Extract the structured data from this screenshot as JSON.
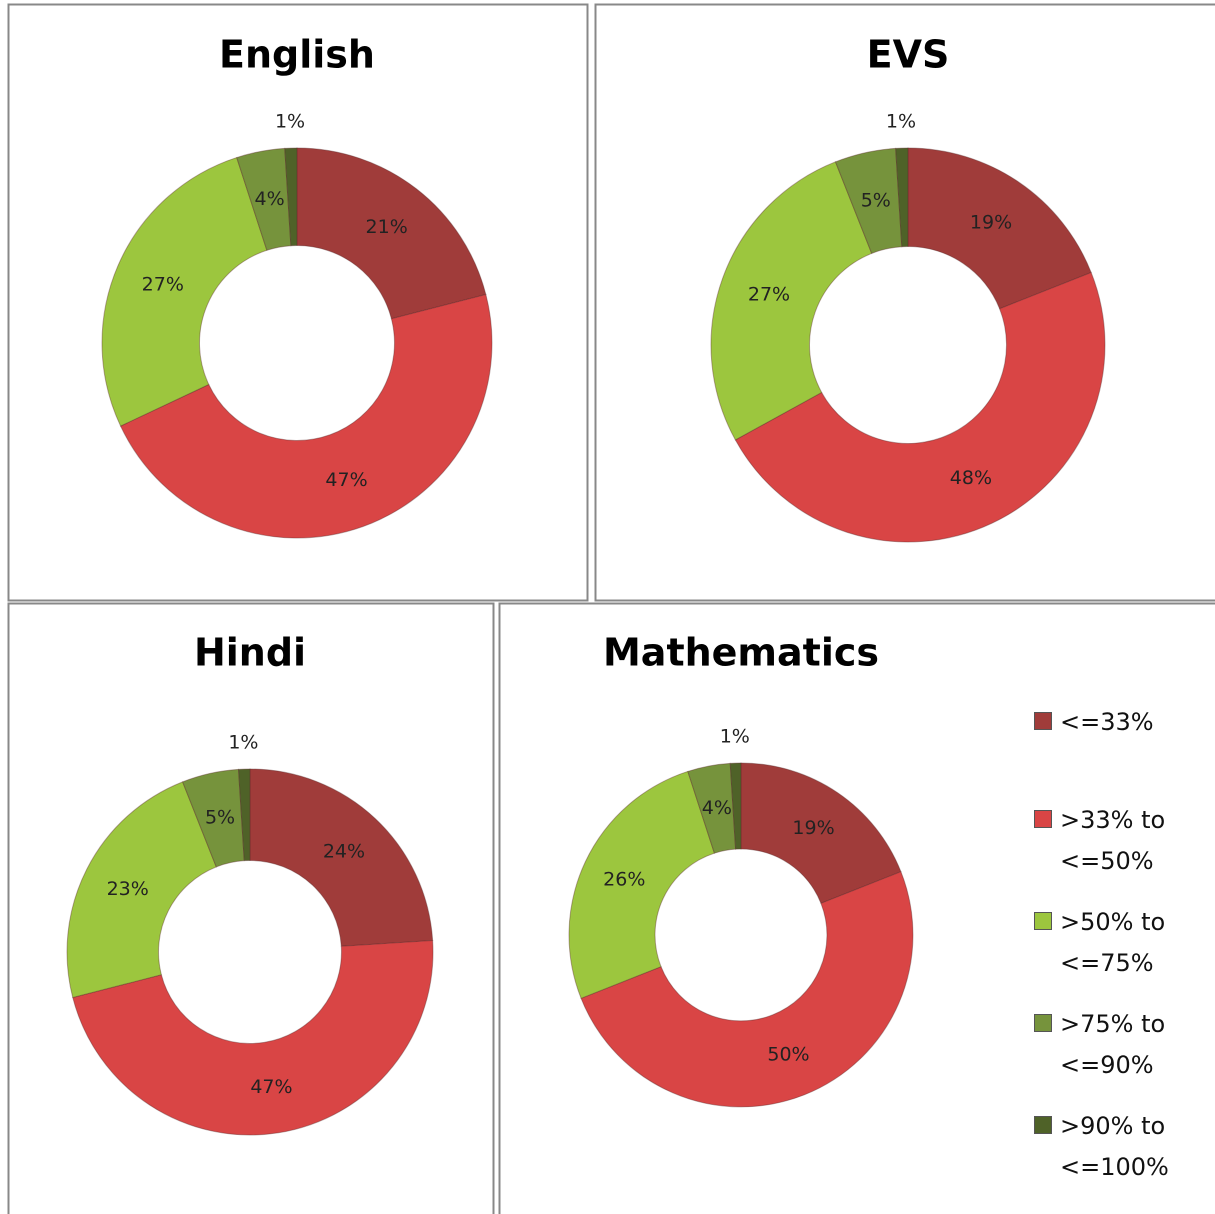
{
  "chart_data": [
    {
      "type": "donut",
      "title": "English",
      "values": [
        21,
        47,
        27,
        4,
        1
      ],
      "value_labels": [
        "21%",
        "47%",
        "27%",
        "4%",
        "1%"
      ],
      "colors": [
        "#a03c3a",
        "#d94545",
        "#9cc63e",
        "#76933c",
        "#4f6228"
      ]
    },
    {
      "type": "donut",
      "title": "EVS",
      "values": [
        19,
        48,
        27,
        5,
        1
      ],
      "value_labels": [
        "19%",
        "48%",
        "27%",
        "5%",
        "1%"
      ],
      "colors": [
        "#a03c3a",
        "#d94545",
        "#9cc63e",
        "#76933c",
        "#4f6228"
      ]
    },
    {
      "type": "donut",
      "title": "Hindi",
      "values": [
        24,
        47,
        23,
        5,
        1
      ],
      "value_labels": [
        "24%",
        "47%",
        "23%",
        "5%",
        "1%"
      ],
      "colors": [
        "#a03c3a",
        "#d94545",
        "#9cc63e",
        "#76933c",
        "#4f6228"
      ]
    },
    {
      "type": "donut",
      "title": "Mathematics",
      "values": [
        19,
        50,
        26,
        4,
        1
      ],
      "value_labels": [
        "19%",
        "50%",
        "26%",
        "4%",
        "1%"
      ],
      "colors": [
        "#a03c3a",
        "#d94545",
        "#9cc63e",
        "#76933c",
        "#4f6228"
      ],
      "categories": [
        "<=33%",
        ">33% to <=50%",
        ">50% to <=75%",
        ">75% to <=90%",
        ">90% to <=100%"
      ],
      "legend": "right"
    }
  ]
}
